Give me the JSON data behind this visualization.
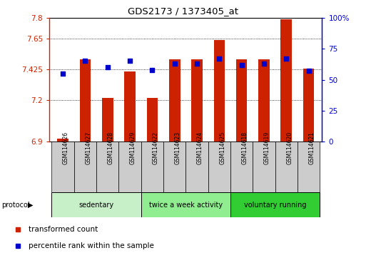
{
  "title": "GDS2173 / 1373405_at",
  "samples": [
    "GSM114626",
    "GSM114627",
    "GSM114628",
    "GSM114629",
    "GSM114622",
    "GSM114623",
    "GSM114624",
    "GSM114625",
    "GSM114618",
    "GSM114619",
    "GSM114620",
    "GSM114621"
  ],
  "red_values": [
    6.92,
    7.5,
    7.22,
    7.41,
    7.22,
    7.5,
    7.5,
    7.64,
    7.5,
    7.5,
    7.79,
    7.43
  ],
  "blue_values": [
    55,
    65,
    60,
    65,
    58,
    63,
    63,
    67,
    62,
    63,
    67,
    57
  ],
  "groups": [
    {
      "label": "sedentary",
      "start": 0,
      "end": 4,
      "color": "#c8f0c8"
    },
    {
      "label": "twice a week activity",
      "start": 4,
      "end": 8,
      "color": "#90ee90"
    },
    {
      "label": "voluntary running",
      "start": 8,
      "end": 12,
      "color": "#32cd32"
    }
  ],
  "ylim_left": [
    6.9,
    7.8
  ],
  "ylim_right": [
    0,
    100
  ],
  "yticks_left": [
    6.9,
    7.2,
    7.425,
    7.65,
    7.8
  ],
  "yticks_right": [
    0,
    25,
    50,
    75,
    100
  ],
  "ytick_labels_left": [
    "6.9",
    "7.2",
    "7.425",
    "7.65",
    "7.8"
  ],
  "ytick_labels_right": [
    "0",
    "25",
    "50",
    "75",
    "100%"
  ],
  "bar_color": "#cc2200",
  "dot_color": "#0000cc",
  "bar_width": 0.5,
  "bar_bottom": 6.9,
  "grid_color": "#000000",
  "sample_box_color": "#cccccc",
  "left_axis_color": "#cc2200",
  "right_axis_color": "#0000cc"
}
